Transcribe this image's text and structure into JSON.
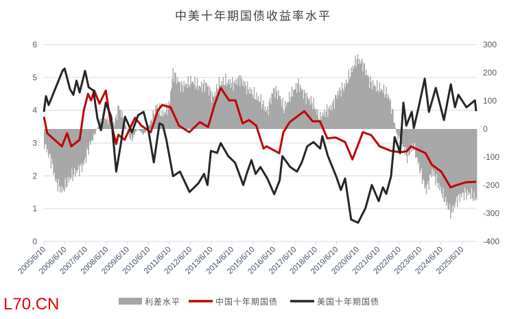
{
  "chart_data": {
    "type": "line",
    "title": "中美十年期国债收益率水平",
    "watermark": "L70.CN",
    "xlabel": "",
    "ylabel_left": "",
    "ylabel_right": "",
    "ylim_left": [
      0,
      6
    ],
    "ylim_right": [
      -400,
      300
    ],
    "xlim": [
      2005.44,
      2026.12
    ],
    "grid": true,
    "legend_position": "bottom",
    "left_ticks": [
      "0",
      "1",
      "2",
      "3",
      "4",
      "5",
      "6"
    ],
    "right_ticks": [
      "-400",
      "-300",
      "-200",
      "-100",
      "0",
      "100",
      "200",
      "300"
    ],
    "x_tick_labels": [
      "2005/6/10",
      "2006/6/10",
      "2007/6/10",
      "2008/6/10",
      "2009/6/10",
      "2010/6/10",
      "2011/6/10",
      "2012/6/10",
      "2013/6/10",
      "2014/6/10",
      "2015/6/10",
      "2016/6/10",
      "2017/6/10",
      "2018/6/10",
      "2019/6/10",
      "2020/6/10",
      "2021/6/10",
      "2022/6/10",
      "2023/6/10",
      "2024/6/10",
      "2025/6/10"
    ],
    "series": [
      {
        "name": "利差水平",
        "type": "bar",
        "axis": "right",
        "color": "#a6a6a6",
        "points": [
          [
            2005.44,
            -50
          ],
          [
            2005.8,
            -120
          ],
          [
            2006.0,
            -190
          ],
          [
            2006.3,
            -220
          ],
          [
            2006.7,
            -170
          ],
          [
            2007.0,
            -150
          ],
          [
            2007.3,
            -130
          ],
          [
            2007.6,
            -60
          ],
          [
            2007.9,
            -10
          ],
          [
            2008.2,
            40
          ],
          [
            2008.5,
            30
          ],
          [
            2008.8,
            20
          ],
          [
            2009.0,
            80
          ],
          [
            2009.3,
            20
          ],
          [
            2009.6,
            -40
          ],
          [
            2009.9,
            0
          ],
          [
            2010.2,
            -20
          ],
          [
            2010.5,
            20
          ],
          [
            2010.8,
            80
          ],
          [
            2011.1,
            50
          ],
          [
            2011.4,
            80
          ],
          [
            2011.6,
            200
          ],
          [
            2012.0,
            150
          ],
          [
            2012.5,
            170
          ],
          [
            2012.9,
            150
          ],
          [
            2013.2,
            160
          ],
          [
            2013.5,
            110
          ],
          [
            2013.8,
            160
          ],
          [
            2014.1,
            170
          ],
          [
            2014.5,
            160
          ],
          [
            2014.8,
            180
          ],
          [
            2015.1,
            150
          ],
          [
            2015.5,
            120
          ],
          [
            2015.8,
            100
          ],
          [
            2016.1,
            60
          ],
          [
            2016.4,
            140
          ],
          [
            2016.7,
            120
          ],
          [
            2016.9,
            70
          ],
          [
            2017.3,
            130
          ],
          [
            2017.6,
            160
          ],
          [
            2017.9,
            120
          ],
          [
            2018.3,
            90
          ],
          [
            2018.6,
            40
          ],
          [
            2018.9,
            60
          ],
          [
            2019.2,
            80
          ],
          [
            2019.5,
            130
          ],
          [
            2019.8,
            150
          ],
          [
            2020.1,
            200
          ],
          [
            2020.4,
            250
          ],
          [
            2020.7,
            230
          ],
          [
            2021.0,
            170
          ],
          [
            2021.3,
            150
          ],
          [
            2021.6,
            140
          ],
          [
            2021.9,
            120
          ],
          [
            2022.1,
            60
          ],
          [
            2022.3,
            -20
          ],
          [
            2022.6,
            -60
          ],
          [
            2022.8,
            -100
          ],
          [
            2023.1,
            -60
          ],
          [
            2023.4,
            -140
          ],
          [
            2023.7,
            -220
          ],
          [
            2024.0,
            -150
          ],
          [
            2024.3,
            -200
          ],
          [
            2024.6,
            -250
          ],
          [
            2024.9,
            -300
          ],
          [
            2025.2,
            -250
          ],
          [
            2025.5,
            -230
          ],
          [
            2025.8,
            -230
          ],
          [
            2026.12,
            -250
          ]
        ]
      },
      {
        "name": "中国十年期国债",
        "type": "line",
        "axis": "left",
        "color": "#c00000",
        "points": [
          [
            2005.44,
            3.8
          ],
          [
            2005.6,
            3.3
          ],
          [
            2006.3,
            2.9
          ],
          [
            2006.55,
            3.3
          ],
          [
            2006.75,
            2.9
          ],
          [
            2007.15,
            3.1
          ],
          [
            2007.35,
            4.0
          ],
          [
            2007.55,
            4.5
          ],
          [
            2007.7,
            4.3
          ],
          [
            2007.85,
            4.6
          ],
          [
            2008.1,
            4.2
          ],
          [
            2008.4,
            4.6
          ],
          [
            2008.6,
            3.75
          ],
          [
            2008.9,
            2.97
          ],
          [
            2009.0,
            3.25
          ],
          [
            2009.3,
            3.1
          ],
          [
            2009.8,
            3.77
          ],
          [
            2010.1,
            3.53
          ],
          [
            2010.55,
            3.33
          ],
          [
            2010.9,
            4.0
          ],
          [
            2011.1,
            4.16
          ],
          [
            2011.5,
            4.09
          ],
          [
            2011.9,
            3.53
          ],
          [
            2012.4,
            3.33
          ],
          [
            2012.9,
            3.64
          ],
          [
            2013.3,
            3.49
          ],
          [
            2013.6,
            4.16
          ],
          [
            2013.9,
            4.68
          ],
          [
            2014.3,
            4.3
          ],
          [
            2014.6,
            4.3
          ],
          [
            2014.95,
            3.6
          ],
          [
            2015.25,
            3.7
          ],
          [
            2015.6,
            3.53
          ],
          [
            2015.95,
            2.83
          ],
          [
            2016.1,
            2.9
          ],
          [
            2016.7,
            2.69
          ],
          [
            2016.9,
            3.33
          ],
          [
            2017.2,
            3.64
          ],
          [
            2017.9,
            3.97
          ],
          [
            2018.3,
            3.66
          ],
          [
            2018.65,
            3.66
          ],
          [
            2019.0,
            3.14
          ],
          [
            2019.4,
            3.17
          ],
          [
            2019.85,
            3.03
          ],
          [
            2020.2,
            2.5
          ],
          [
            2020.7,
            3.33
          ],
          [
            2021.1,
            3.24
          ],
          [
            2021.5,
            2.9
          ],
          [
            2022.05,
            2.76
          ],
          [
            2022.5,
            2.72
          ],
          [
            2022.8,
            2.75
          ],
          [
            2023.0,
            2.9
          ],
          [
            2023.7,
            2.69
          ],
          [
            2024.0,
            2.34
          ],
          [
            2024.45,
            2.13
          ],
          [
            2024.9,
            1.65
          ],
          [
            2025.2,
            1.72
          ],
          [
            2025.6,
            1.8
          ],
          [
            2026.12,
            1.82
          ]
        ]
      },
      {
        "name": "美国十年期国债",
        "type": "line",
        "axis": "left",
        "color": "#262626",
        "points": [
          [
            2005.44,
            3.95
          ],
          [
            2005.54,
            4.43
          ],
          [
            2005.67,
            4.16
          ],
          [
            2006.33,
            5.2
          ],
          [
            2006.43,
            5.27
          ],
          [
            2006.69,
            4.64
          ],
          [
            2006.85,
            4.47
          ],
          [
            2007.0,
            4.9
          ],
          [
            2007.15,
            4.54
          ],
          [
            2007.41,
            5.2
          ],
          [
            2007.58,
            4.7
          ],
          [
            2007.81,
            4.6
          ],
          [
            2008.0,
            3.75
          ],
          [
            2008.17,
            3.39
          ],
          [
            2008.4,
            4.23
          ],
          [
            2008.66,
            3.8
          ],
          [
            2008.9,
            2.13
          ],
          [
            2009.12,
            2.97
          ],
          [
            2009.32,
            3.8
          ],
          [
            2009.65,
            3.33
          ],
          [
            2009.95,
            3.85
          ],
          [
            2010.21,
            3.95
          ],
          [
            2010.44,
            3.39
          ],
          [
            2010.7,
            2.41
          ],
          [
            2010.97,
            3.6
          ],
          [
            2011.13,
            3.55
          ],
          [
            2011.3,
            3.1
          ],
          [
            2011.62,
            1.99
          ],
          [
            2011.95,
            2.13
          ],
          [
            2012.41,
            1.51
          ],
          [
            2012.84,
            1.78
          ],
          [
            2013.1,
            2.06
          ],
          [
            2013.27,
            1.72
          ],
          [
            2013.43,
            2.76
          ],
          [
            2013.73,
            2.7
          ],
          [
            2013.9,
            3.0
          ],
          [
            2014.26,
            2.6
          ],
          [
            2014.59,
            2.4
          ],
          [
            2014.98,
            1.72
          ],
          [
            2015.14,
            2.06
          ],
          [
            2015.37,
            2.48
          ],
          [
            2015.57,
            2.06
          ],
          [
            2015.8,
            2.27
          ],
          [
            2016.13,
            1.92
          ],
          [
            2016.46,
            1.44
          ],
          [
            2016.72,
            1.86
          ],
          [
            2016.85,
            2.6
          ],
          [
            2017.22,
            2.27
          ],
          [
            2017.55,
            2.13
          ],
          [
            2017.78,
            2.41
          ],
          [
            2018.04,
            2.9
          ],
          [
            2018.34,
            3.03
          ],
          [
            2018.66,
            2.83
          ],
          [
            2018.76,
            3.21
          ],
          [
            2019.03,
            2.6
          ],
          [
            2019.42,
            1.99
          ],
          [
            2019.65,
            1.57
          ],
          [
            2019.85,
            1.92
          ],
          [
            2020.14,
            0.67
          ],
          [
            2020.47,
            0.57
          ],
          [
            2020.83,
            1.02
          ],
          [
            2021.13,
            1.72
          ],
          [
            2021.46,
            1.23
          ],
          [
            2021.66,
            1.65
          ],
          [
            2021.82,
            1.45
          ],
          [
            2022.05,
            1.99
          ],
          [
            2022.22,
            3.18
          ],
          [
            2022.38,
            2.9
          ],
          [
            2022.48,
            2.69
          ],
          [
            2022.64,
            4.23
          ],
          [
            2022.78,
            3.53
          ],
          [
            2023.04,
            3.95
          ],
          [
            2023.14,
            3.46
          ],
          [
            2023.37,
            4.09
          ],
          [
            2023.66,
            4.96
          ],
          [
            2023.86,
            3.95
          ],
          [
            2024.19,
            4.68
          ],
          [
            2024.58,
            3.7
          ],
          [
            2024.91,
            4.79
          ],
          [
            2025.11,
            4.09
          ],
          [
            2025.27,
            4.47
          ],
          [
            2025.66,
            4.09
          ],
          [
            2026.06,
            4.3
          ],
          [
            2026.12,
            3.97
          ]
        ]
      }
    ]
  }
}
